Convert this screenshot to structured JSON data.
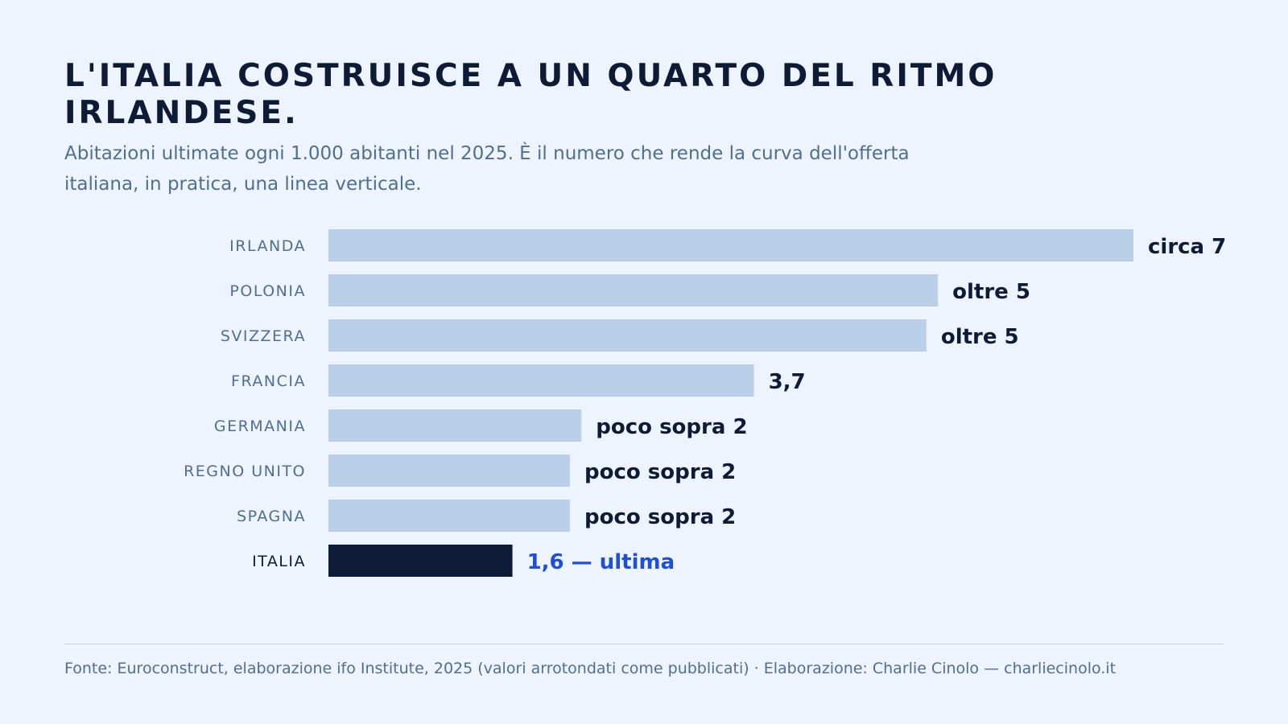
{
  "header": {
    "title": "L'ITALIA COSTRUISCE A UN QUARTO DEL RITMO IRLANDESE.",
    "subtitle": "Abitazioni ultimate ogni 1.000 abitanti nel 2025. È il numero che rende la curva dell'offerta italiana, in pratica, una linea verticale."
  },
  "chart_data": {
    "type": "bar",
    "orientation": "horizontal",
    "categories": [
      "IRLANDA",
      "POLONIA",
      "SVIZZERA",
      "FRANCIA",
      "GERMANIA",
      "REGNO UNITO",
      "SPAGNA",
      "ITALIA"
    ],
    "values": [
      7.0,
      5.3,
      5.2,
      3.7,
      2.2,
      2.1,
      2.1,
      1.6
    ],
    "data_labels": [
      "circa 7",
      "oltre 5",
      "oltre 5",
      "3,7",
      "poco sopra 2",
      "poco sopra 2",
      "poco sopra 2",
      "1,6 — ultima"
    ],
    "highlight": "ITALIA",
    "xlim": [
      0,
      7.0
    ],
    "grid": false,
    "colors": {
      "bar": "#bacfe8",
      "highlight_bar": "#0d1b36",
      "highlight_label": "#1f4fd6",
      "label": "#4e6e93",
      "value": "#0d1b36"
    }
  },
  "footer": {
    "source": "Fonte: Euroconstruct, elaborazione ifo Institute, 2025 (valori arrotondati come pubblicati) · Elaborazione: Charlie Cinolo — charliecinolo.it"
  }
}
